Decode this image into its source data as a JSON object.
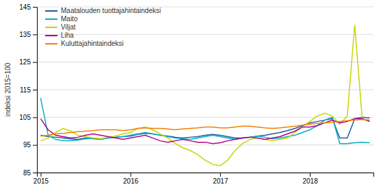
{
  "chart_data": {
    "type": "line",
    "ylabel": "indeksi 2015=100",
    "categories": [
      "2015",
      null,
      null,
      null,
      null,
      null,
      null,
      null,
      null,
      null,
      null,
      null,
      "2016",
      null,
      null,
      null,
      null,
      null,
      null,
      null,
      null,
      null,
      null,
      null,
      "2017",
      null,
      null,
      null,
      null,
      null,
      null,
      null,
      null,
      null,
      null,
      null,
      "2018",
      null,
      null,
      null,
      null,
      null,
      null,
      null,
      null
    ],
    "ylim": [
      85,
      145
    ],
    "yticks": [
      85,
      95,
      105,
      115,
      125,
      135,
      145
    ],
    "grid": true,
    "legend": "upper left",
    "series": [
      {
        "name": "Maatalouden tuottajahintaindeksi",
        "color": "#1f5c99",
        "values": [
          98.5,
          98.0,
          97.8,
          97.5,
          97.2,
          97.0,
          97.5,
          97.3,
          97.0,
          97.5,
          97.8,
          98.0,
          98.2,
          98.8,
          99.2,
          99.0,
          98.5,
          98.2,
          97.8,
          97.5,
          97.8,
          98.0,
          98.5,
          98.8,
          98.5,
          98.0,
          97.5,
          97.5,
          97.8,
          98.2,
          98.5,
          99.0,
          99.5,
          100.2,
          101.0,
          102.0,
          103.0,
          103.5,
          104.0,
          104.5,
          97.5,
          97.5,
          104.5,
          105.0,
          104.8
        ]
      },
      {
        "name": "Maito",
        "color": "#00b0c8",
        "values": [
          112.0,
          98.5,
          97.0,
          96.5,
          96.5,
          96.8,
          97.2,
          97.5,
          97.2,
          97.5,
          97.8,
          98.0,
          98.5,
          99.0,
          99.5,
          99.0,
          98.5,
          98.0,
          97.5,
          97.2,
          97.0,
          97.5,
          98.0,
          98.5,
          98.0,
          97.5,
          97.0,
          97.5,
          97.8,
          98.2,
          97.8,
          97.2,
          97.5,
          98.0,
          98.5,
          99.5,
          100.5,
          102.0,
          104.0,
          105.0,
          95.5,
          95.5,
          95.8,
          96.0,
          95.8
        ]
      },
      {
        "name": "Viljat",
        "color": "#c8d400",
        "values": [
          96.5,
          97.5,
          99.5,
          101.0,
          100.0,
          98.5,
          98.0,
          97.5,
          97.2,
          97.8,
          98.2,
          99.0,
          99.5,
          101.0,
          101.5,
          100.5,
          99.0,
          97.5,
          95.5,
          94.0,
          93.0,
          91.5,
          89.5,
          88.0,
          87.5,
          89.5,
          93.0,
          95.5,
          97.0,
          97.5,
          97.0,
          96.5,
          97.0,
          97.5,
          99.5,
          101.5,
          103.5,
          105.5,
          106.5,
          105.5,
          102.5,
          105.5,
          138.5,
          104.5,
          103.5
        ]
      },
      {
        "name": "Liha",
        "color": "#b0008c",
        "values": [
          104.5,
          100.5,
          98.5,
          98.0,
          97.5,
          97.8,
          98.5,
          99.0,
          98.5,
          98.0,
          97.5,
          97.0,
          97.5,
          98.0,
          98.5,
          97.5,
          96.5,
          96.0,
          96.5,
          97.0,
          96.5,
          96.0,
          96.0,
          95.5,
          95.8,
          96.5,
          97.0,
          97.5,
          97.8,
          97.5,
          97.0,
          97.5,
          98.0,
          99.0,
          100.0,
          101.5,
          101.5,
          102.0,
          103.0,
          104.0,
          103.0,
          103.5,
          104.5,
          104.5,
          103.5
        ]
      },
      {
        "name": "Kuluttajahintaindeksi",
        "color": "#f08000",
        "values": [
          98.2,
          98.5,
          99.0,
          99.2,
          99.5,
          99.8,
          100.0,
          100.2,
          100.5,
          100.5,
          100.5,
          100.2,
          100.5,
          101.0,
          101.2,
          101.0,
          101.0,
          100.8,
          100.5,
          100.8,
          101.0,
          101.2,
          101.5,
          101.5,
          101.2,
          101.2,
          101.5,
          101.8,
          101.8,
          101.5,
          101.2,
          101.0,
          101.2,
          101.5,
          101.8,
          102.2,
          102.5,
          102.8,
          103.0,
          103.2,
          103.5,
          103.8,
          104.0,
          104.2,
          104.0
        ]
      }
    ]
  }
}
